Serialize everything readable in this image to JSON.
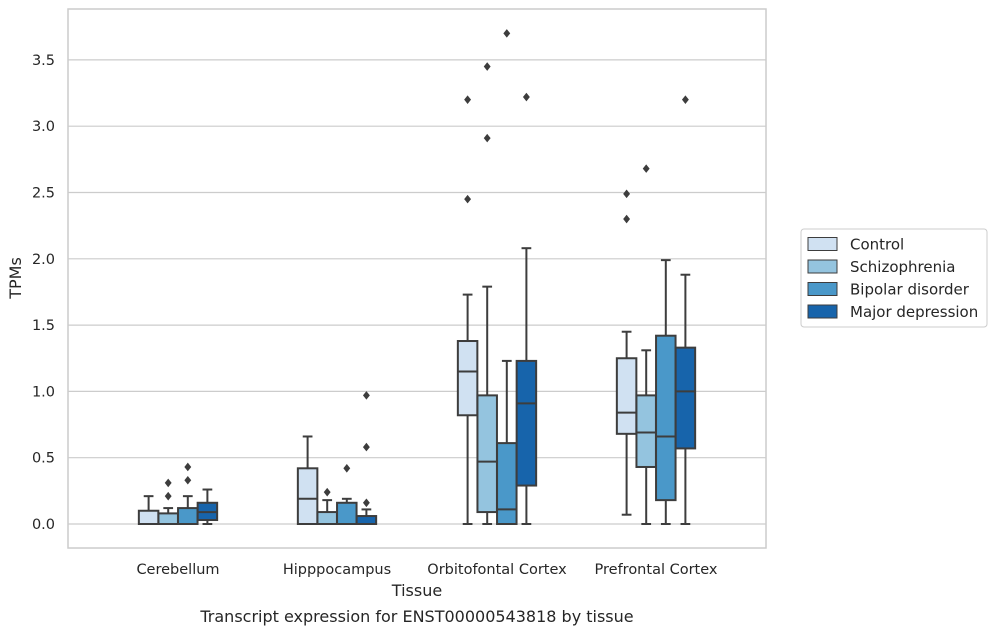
{
  "chart_data": {
    "type": "boxplot",
    "xlabel": "Tissue",
    "ylabel": "TPMs",
    "caption": "Transcript expression for ENST00000543818 by tissue",
    "ylim": [
      -0.18,
      3.9
    ],
    "yticks": [
      "0.0",
      "0.5",
      "1.0",
      "1.5",
      "2.0",
      "2.5",
      "3.0",
      "3.5"
    ],
    "ytick_values": [
      0,
      0.5,
      1.0,
      1.5,
      2.0,
      2.5,
      3.0,
      3.5
    ],
    "grid": "horizontal",
    "legend_position": "right",
    "categories": [
      "Cerebellum",
      "Hipppocampus",
      "Orbitofontal Cortex",
      "Prefrontal Cortex"
    ],
    "series": [
      {
        "name": "Control",
        "color": "#d0e1f2",
        "boxes": [
          {
            "whislo": 0,
            "q1": 0,
            "med": 0,
            "q3": 0.1,
            "whishi": 0.21,
            "fliers": []
          },
          {
            "whislo": 0,
            "q1": 0,
            "med": 0.19,
            "q3": 0.42,
            "whishi": 0.66,
            "fliers": []
          },
          {
            "whislo": 0,
            "q1": 0.82,
            "med": 1.15,
            "q3": 1.38,
            "whishi": 1.73,
            "fliers": [
              2.45,
              3.2
            ]
          },
          {
            "whislo": 0.07,
            "q1": 0.68,
            "med": 0.84,
            "q3": 1.25,
            "whishi": 1.45,
            "fliers": [
              2.3,
              2.49
            ]
          }
        ]
      },
      {
        "name": "Schizophrenia",
        "color": "#94c4df",
        "boxes": [
          {
            "whislo": 0,
            "q1": 0,
            "med": 0,
            "q3": 0.08,
            "whishi": 0.12,
            "fliers": [
              0.21,
              0.31
            ]
          },
          {
            "whislo": 0,
            "q1": 0,
            "med": 0,
            "q3": 0.09,
            "whishi": 0.18,
            "fliers": [
              0.24
            ]
          },
          {
            "whislo": 0,
            "q1": 0.09,
            "med": 0.47,
            "q3": 0.97,
            "whishi": 1.79,
            "fliers": [
              2.91,
              3.45
            ]
          },
          {
            "whislo": 0,
            "q1": 0.43,
            "med": 0.69,
            "q3": 0.97,
            "whishi": 1.31,
            "fliers": [
              2.68
            ]
          }
        ]
      },
      {
        "name": "Bipolar disorder",
        "color": "#4a98c9",
        "boxes": [
          {
            "whislo": 0,
            "q1": 0,
            "med": 0,
            "q3": 0.12,
            "whishi": 0.21,
            "fliers": [
              0.33,
              0.43
            ]
          },
          {
            "whislo": 0,
            "q1": 0,
            "med": 0,
            "q3": 0.16,
            "whishi": 0.19,
            "fliers": [
              0.42
            ]
          },
          {
            "whislo": 0,
            "q1": 0,
            "med": 0.11,
            "q3": 0.61,
            "whishi": 1.23,
            "fliers": [
              3.7
            ]
          },
          {
            "whislo": 0,
            "q1": 0.18,
            "med": 0.66,
            "q3": 1.42,
            "whishi": 1.99,
            "fliers": []
          }
        ]
      },
      {
        "name": "Major depression",
        "color": "#1764ab",
        "boxes": [
          {
            "whislo": 0,
            "q1": 0.03,
            "med": 0.09,
            "q3": 0.16,
            "whishi": 0.26,
            "fliers": []
          },
          {
            "whislo": 0,
            "q1": 0,
            "med": 0,
            "q3": 0.06,
            "whishi": 0.11,
            "fliers": [
              0.16,
              0.58,
              0.97
            ]
          },
          {
            "whislo": 0,
            "q1": 0.29,
            "med": 0.91,
            "q3": 1.23,
            "whishi": 2.08,
            "fliers": [
              3.22
            ]
          },
          {
            "whislo": 0,
            "q1": 0.57,
            "med": 1.0,
            "q3": 1.33,
            "whishi": 1.88,
            "fliers": [
              3.2
            ]
          }
        ]
      }
    ]
  }
}
